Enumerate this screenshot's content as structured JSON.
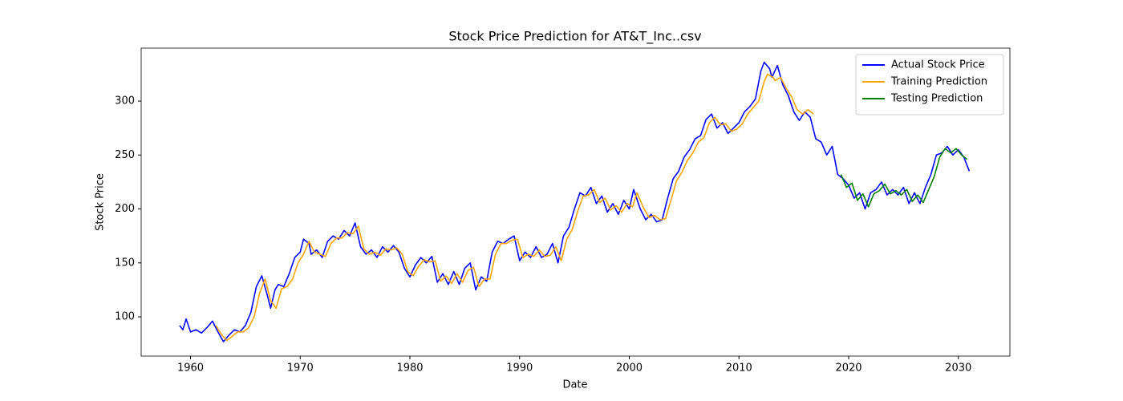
{
  "chart_data": {
    "type": "line",
    "title": "Stock Price Prediction for AT&T_Inc..csv",
    "x_label": "Date",
    "y_label": "Stock Price",
    "xlim": [
      1955.5,
      2034.7
    ],
    "ylim": [
      63.6,
      349.1
    ],
    "xticks": [
      1960,
      1970,
      1980,
      1990,
      2000,
      2010,
      2020,
      2030
    ],
    "yticks": [
      100,
      150,
      200,
      250,
      300
    ],
    "legend": "upper right",
    "series": [
      {
        "name": "Actual Stock Price",
        "color": "#0000ff",
        "x": [
          1959.0,
          1959.3,
          1959.6,
          1960,
          1960.5,
          1961,
          1961.5,
          1962,
          1962.5,
          1963,
          1963.5,
          1964,
          1964.5,
          1965,
          1965.5,
          1966,
          1966.5,
          1967,
          1967.3,
          1967.7,
          1968,
          1968.5,
          1969,
          1969.5,
          1970,
          1970.3,
          1970.8,
          1971,
          1971.5,
          1972,
          1972.5,
          1973,
          1973.5,
          1974,
          1974.5,
          1975,
          1975.5,
          1976,
          1976.5,
          1977,
          1977.5,
          1978,
          1978.5,
          1979,
          1979.5,
          1980,
          1980.5,
          1981,
          1981.5,
          1982,
          1982.5,
          1983,
          1983.5,
          1984,
          1984.5,
          1985,
          1985.5,
          1986,
          1986.5,
          1987,
          1987.5,
          1988,
          1988.5,
          1989,
          1989.5,
          1990,
          1990.5,
          1991,
          1991.5,
          1992,
          1992.5,
          1993,
          1993.5,
          1994,
          1994.5,
          1995,
          1995.5,
          1996,
          1996.5,
          1997,
          1997.5,
          1998,
          1998.5,
          1999,
          1999.5,
          2000,
          2000.4,
          2001,
          2001.5,
          2002,
          2002.5,
          2003,
          2003.5,
          2004,
          2004.5,
          2005,
          2005.5,
          2006,
          2006.5,
          2007,
          2007.5,
          2008,
          2008.5,
          2009,
          2009.5,
          2010,
          2010.5,
          2011,
          2011.5,
          2012,
          2012.3,
          2012.8,
          2013,
          2013.5,
          2014,
          2014.5,
          2015,
          2015.5,
          2016,
          2016.5,
          2017,
          2017.5,
          2018,
          2018.5,
          2019,
          2019.5,
          2020,
          2020.5,
          2021,
          2021.5,
          2022,
          2022.5,
          2023,
          2023.5,
          2024,
          2024.5,
          2025,
          2025.5,
          2026,
          2026.5,
          2027,
          2027.5,
          2028,
          2028.5,
          2029,
          2029.5,
          2030,
          2030.5,
          2031
        ],
        "values": [
          92,
          88,
          98,
          86,
          88,
          85,
          90,
          96,
          86,
          77,
          83,
          88,
          86,
          92,
          104,
          128,
          138,
          120,
          108,
          125,
          130,
          128,
          140,
          155,
          160,
          172,
          168,
          158,
          162,
          155,
          170,
          175,
          172,
          180,
          175,
          187,
          165,
          158,
          162,
          155,
          165,
          160,
          166,
          160,
          145,
          137,
          148,
          155,
          150,
          156,
          132,
          140,
          130,
          142,
          130,
          145,
          150,
          125,
          137,
          133,
          160,
          170,
          168,
          172,
          175,
          152,
          160,
          155,
          165,
          155,
          158,
          168,
          150,
          175,
          183,
          200,
          215,
          212,
          220,
          205,
          212,
          197,
          205,
          195,
          208,
          200,
          218,
          200,
          190,
          195,
          188,
          190,
          210,
          228,
          235,
          248,
          255,
          265,
          268,
          283,
          288,
          275,
          280,
          270,
          275,
          280,
          290,
          295,
          302,
          328,
          336,
          330,
          322,
          333,
          315,
          305,
          290,
          282,
          290,
          285,
          265,
          262,
          250,
          258,
          232,
          228,
          222,
          210,
          215,
          200,
          215,
          218,
          225,
          213,
          218,
          213,
          220,
          205,
          215,
          205,
          220,
          232,
          250,
          252,
          258,
          250,
          255,
          248,
          235
        ]
      },
      {
        "name": "Training Prediction",
        "color": "#ffa500",
        "x": [
          1962.3,
          1962.8,
          1963.3,
          1963.8,
          1964.3,
          1964.8,
          1965.3,
          1965.8,
          1966.3,
          1966.8,
          1967.3,
          1967.8,
          1968.3,
          1968.8,
          1969.3,
          1969.8,
          1970.3,
          1970.8,
          1971.3,
          1971.8,
          1972.3,
          1972.8,
          1973.3,
          1973.8,
          1974.3,
          1974.8,
          1975.3,
          1975.8,
          1976.3,
          1976.8,
          1977.3,
          1977.8,
          1978.3,
          1978.8,
          1979.3,
          1979.8,
          1980.3,
          1980.8,
          1981.3,
          1981.8,
          1982.3,
          1982.8,
          1983.3,
          1983.8,
          1984.3,
          1984.8,
          1985.3,
          1985.8,
          1986.3,
          1986.8,
          1987.3,
          1987.8,
          1988.3,
          1988.8,
          1989.3,
          1989.8,
          1990.3,
          1990.8,
          1991.3,
          1991.8,
          1992.3,
          1992.8,
          1993.3,
          1993.8,
          1994.3,
          1994.8,
          1995.3,
          1995.8,
          1996.3,
          1996.8,
          1997.3,
          1997.8,
          1998.3,
          1998.8,
          1999.3,
          1999.8,
          2000.3,
          2000.7,
          2001.3,
          2001.8,
          2002.3,
          2002.8,
          2003.3,
          2003.8,
          2004.3,
          2004.8,
          2005.3,
          2005.8,
          2006.3,
          2006.8,
          2007.3,
          2007.8,
          2008.3,
          2008.8,
          2009.3,
          2009.8,
          2010.3,
          2010.8,
          2011.3,
          2011.8,
          2012.3,
          2012.6,
          2013.1,
          2013.3,
          2013.8,
          2014.3,
          2014.8,
          2015.3,
          2015.8,
          2016.3,
          2016.8
        ],
        "values": [
          92,
          84,
          78,
          82,
          86,
          86,
          90,
          100,
          122,
          135,
          115,
          108,
          126,
          128,
          135,
          150,
          158,
          170,
          160,
          158,
          156,
          168,
          173,
          173,
          178,
          177,
          184,
          163,
          158,
          160,
          157,
          163,
          162,
          164,
          158,
          142,
          138,
          147,
          153,
          151,
          152,
          133,
          138,
          131,
          140,
          132,
          143,
          146,
          128,
          135,
          135,
          158,
          168,
          168,
          171,
          172,
          155,
          158,
          156,
          162,
          156,
          157,
          165,
          152,
          172,
          181,
          198,
          212,
          213,
          218,
          206,
          210,
          199,
          203,
          197,
          205,
          202,
          215,
          201,
          192,
          194,
          190,
          191,
          208,
          226,
          234,
          245,
          252,
          262,
          266,
          280,
          285,
          278,
          279,
          272,
          274,
          279,
          288,
          294,
          300,
          318,
          325,
          322,
          319,
          322,
          312,
          304,
          292,
          288,
          292,
          288
        ]
      },
      {
        "name": "Testing Prediction",
        "color": "#008000",
        "x": [
          2019.3,
          2019.8,
          2020.3,
          2020.8,
          2021.3,
          2021.8,
          2022.3,
          2022.8,
          2023.3,
          2023.8,
          2024.3,
          2024.8,
          2025.3,
          2025.8,
          2026.3,
          2026.8,
          2027.3,
          2027.8,
          2028.3,
          2028.8,
          2029.3,
          2029.8,
          2030.3,
          2030.8
        ],
        "values": [
          232,
          220,
          224,
          208,
          214,
          202,
          214,
          217,
          223,
          214,
          217,
          213,
          218,
          207,
          213,
          206,
          218,
          230,
          248,
          256,
          252,
          256,
          250,
          246
        ]
      }
    ]
  }
}
